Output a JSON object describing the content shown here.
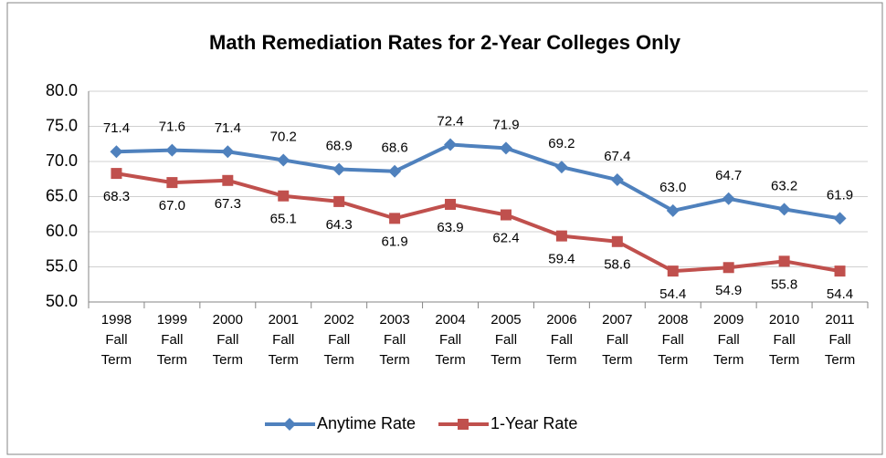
{
  "chart_data": {
    "type": "line",
    "title": "Math Remediation Rates for 2-Year Colleges Only",
    "categories": [
      [
        "1998",
        "Fall",
        "Term"
      ],
      [
        "1999",
        "Fall",
        "Term"
      ],
      [
        "2000",
        "Fall",
        "Term"
      ],
      [
        "2001",
        "Fall",
        "Term"
      ],
      [
        "2002",
        "Fall",
        "Term"
      ],
      [
        "2003",
        "Fall",
        "Term"
      ],
      [
        "2004",
        "Fall",
        "Term"
      ],
      [
        "2005",
        "Fall",
        "Term"
      ],
      [
        "2006",
        "Fall",
        "Term"
      ],
      [
        "2007",
        "Fall",
        "Term"
      ],
      [
        "2008",
        "Fall",
        "Term"
      ],
      [
        "2009",
        "Fall",
        "Term"
      ],
      [
        "2010",
        "Fall",
        "Term"
      ],
      [
        "2011",
        "Fall",
        "Term"
      ]
    ],
    "series": [
      {
        "name": "Anytime Rate",
        "color": "#4f81bd",
        "marker": "diamond",
        "values": [
          71.4,
          71.6,
          71.4,
          70.2,
          68.9,
          68.6,
          72.4,
          71.9,
          69.2,
          67.4,
          63.0,
          64.7,
          63.2,
          61.9
        ],
        "value_labels": [
          "71.4",
          "71.6",
          "71.4",
          "70.2",
          "68.9",
          "68.6",
          "72.4",
          "71.9",
          "69.2",
          "67.4",
          "63.0",
          "64.7",
          "63.2",
          "61.9"
        ]
      },
      {
        "name": "1-Year Rate",
        "color": "#c0504d",
        "marker": "square",
        "values": [
          68.3,
          67.0,
          67.3,
          65.1,
          64.3,
          61.9,
          63.9,
          62.4,
          59.4,
          58.6,
          54.4,
          54.9,
          55.8,
          54.4
        ],
        "value_labels": [
          "68.3",
          "67.0",
          "67.3",
          "65.1",
          "64.3",
          "61.9",
          "63.9",
          "62.4",
          "59.4",
          "58.6",
          "54.4",
          "54.9",
          "55.8",
          "54.4"
        ]
      }
    ],
    "ylim": [
      50,
      80
    ],
    "yticks": [
      {
        "value": 50,
        "label": "50.0"
      },
      {
        "value": 55,
        "label": "55.0"
      },
      {
        "value": 60,
        "label": "60.0"
      },
      {
        "value": 65,
        "label": "65.0"
      },
      {
        "value": 70,
        "label": "70.0"
      },
      {
        "value": 75,
        "label": "75.0"
      },
      {
        "value": 80,
        "label": "80.0"
      }
    ],
    "grid": true,
    "legend": "bottom"
  }
}
